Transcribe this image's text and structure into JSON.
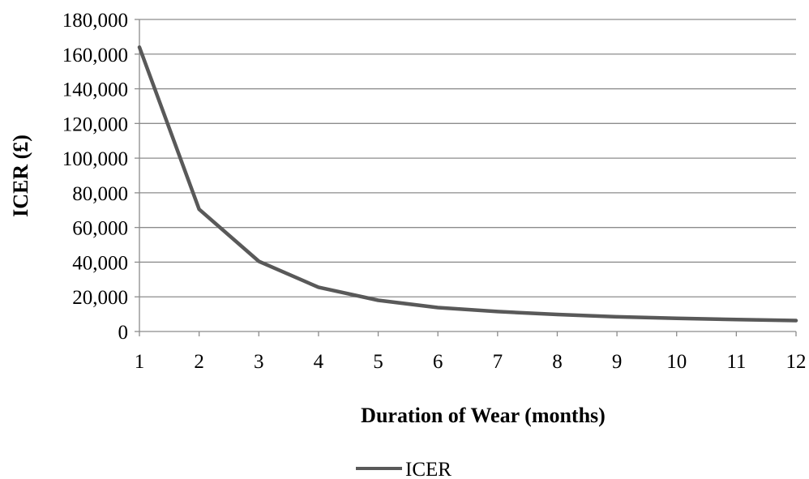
{
  "chart_data": {
    "type": "line",
    "xlabel": "Duration of Wear (months)",
    "ylabel": "ICER (£)",
    "x": [
      1,
      2,
      3,
      4,
      5,
      6,
      7,
      8,
      9,
      10,
      11,
      12
    ],
    "x_tick_labels": [
      "1",
      "2",
      "3",
      "4",
      "5",
      "6",
      "7",
      "8",
      "9",
      "10",
      "11",
      "12"
    ],
    "ylim": [
      0,
      180000
    ],
    "y_tick_labels": [
      "0",
      "20,000",
      "40,000",
      "60,000",
      "80,000",
      "100,000",
      "120,000",
      "140,000",
      "160,000",
      "180,000"
    ],
    "y_ticks": [
      0,
      20000,
      40000,
      60000,
      80000,
      100000,
      120000,
      140000,
      160000,
      180000
    ],
    "grid": true,
    "legend_position": "bottom-center",
    "series": [
      {
        "name": "ICER",
        "color": "#595959",
        "values": [
          164000,
          70500,
          40500,
          25500,
          18000,
          13800,
          11500,
          9800,
          8500,
          7600,
          6900,
          6300
        ]
      }
    ]
  }
}
